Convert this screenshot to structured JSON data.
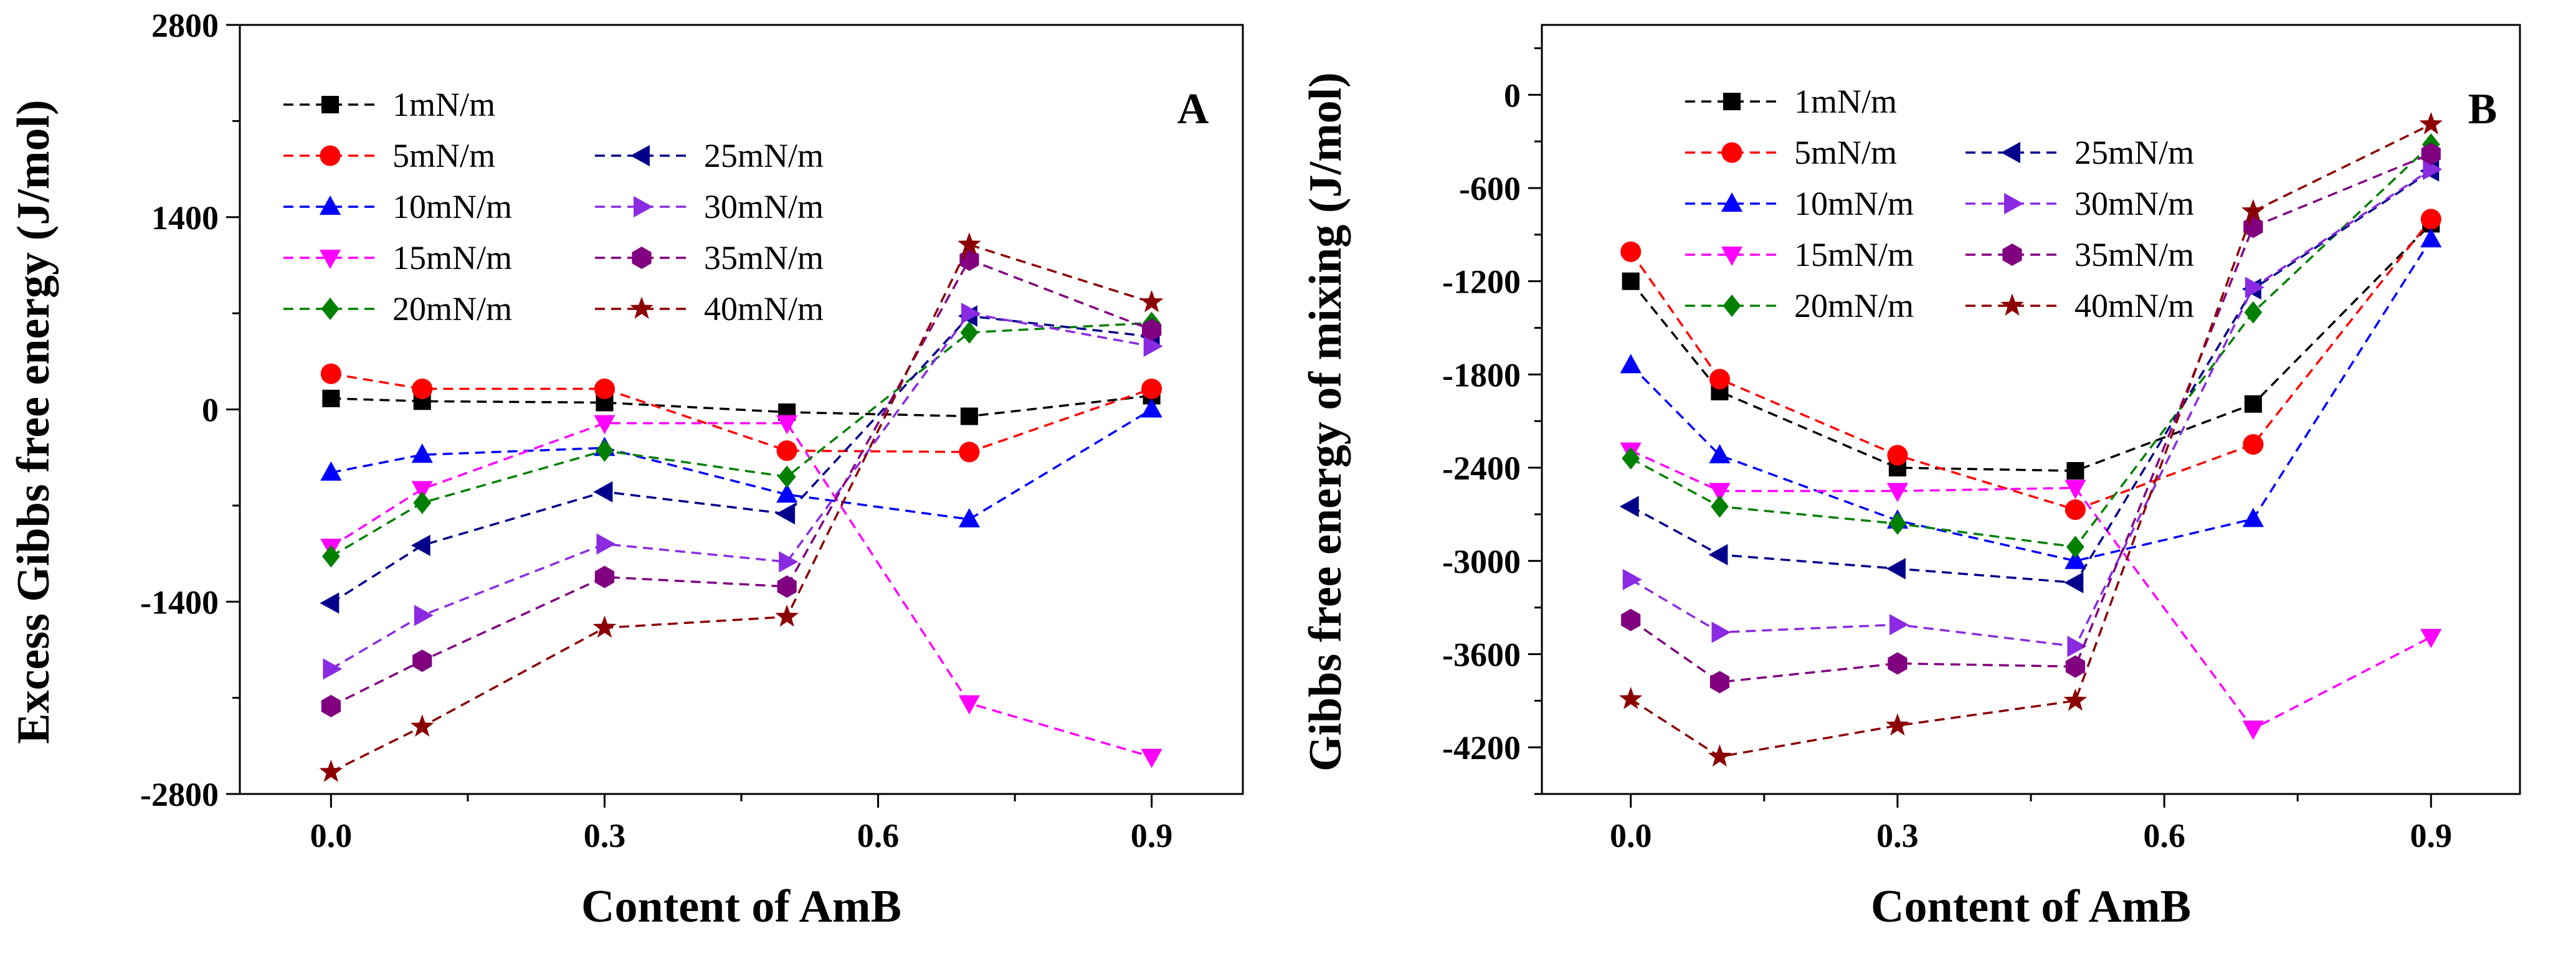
{
  "chart_data": [
    {
      "type": "line",
      "panel_label": "A",
      "xlabel": "Content of AmB",
      "ylabel": "Excess Gibbs free energy (J/mol)",
      "x": [
        0.0,
        0.1,
        0.3,
        0.5,
        0.7,
        0.9
      ],
      "xlim": [
        -0.1,
        1.0
      ],
      "ylim": [
        -2800,
        2800
      ],
      "xticks": [
        0.0,
        0.3,
        0.6,
        0.9
      ],
      "xtick_labels": [
        "0.0",
        "0.3",
        "0.6",
        "0.9"
      ],
      "yticks": [
        -2800,
        -1400,
        0,
        1400,
        2800
      ],
      "ytick_labels": [
        "-2800",
        "-1400",
        "0",
        "1400",
        "2800"
      ],
      "line_style": "dashed",
      "grid": false,
      "legend_position": "top-left",
      "series": [
        {
          "name": "1mN/m",
          "color": "#000000",
          "marker": "square",
          "values": [
            80,
            60,
            50,
            -20,
            -50,
            100
          ]
        },
        {
          "name": "5mN/m",
          "color": "#ff0000",
          "marker": "circle",
          "values": [
            260,
            150,
            150,
            -300,
            -310,
            150
          ]
        },
        {
          "name": "10mN/m",
          "color": "#0000ff",
          "marker": "triangle-up",
          "values": [
            -460,
            -330,
            -280,
            -620,
            -800,
            0
          ]
        },
        {
          "name": "15mN/m",
          "color": "#ff00ff",
          "marker": "triangle-down",
          "values": [
            -1000,
            -580,
            -100,
            -100,
            -2140,
            -2530
          ]
        },
        {
          "name": "20mN/m",
          "color": "#008000",
          "marker": "diamond",
          "values": [
            -1070,
            -680,
            -300,
            -490,
            560,
            630
          ]
        },
        {
          "name": "25mN/m",
          "color": "#00008b",
          "marker": "triangle-left",
          "values": [
            -1410,
            -990,
            -600,
            -760,
            680,
            530
          ]
        },
        {
          "name": "30mN/m",
          "color": "#8a2be2",
          "marker": "triangle-right",
          "values": [
            -1890,
            -1500,
            -980,
            -1110,
            700,
            460
          ]
        },
        {
          "name": "35mN/m",
          "color": "#800080",
          "marker": "hexagon",
          "values": [
            -2160,
            -1830,
            -1220,
            -1290,
            1090,
            580
          ]
        },
        {
          "name": "40mN/m",
          "color": "#8b0000",
          "marker": "star",
          "values": [
            -2640,
            -2310,
            -1590,
            -1510,
            1200,
            780
          ]
        }
      ]
    },
    {
      "type": "line",
      "panel_label": "B",
      "xlabel": "Content of AmB",
      "ylabel": "Gibbs free energy of mixing (J/mol)",
      "x": [
        0.0,
        0.1,
        0.3,
        0.5,
        0.7,
        0.9
      ],
      "xlim": [
        -0.1,
        1.0
      ],
      "ylim": [
        -4500,
        450
      ],
      "xticks": [
        0.0,
        0.3,
        0.6,
        0.9
      ],
      "xtick_labels": [
        "0.0",
        "0.3",
        "0.6",
        "0.9"
      ],
      "yticks": [
        -4200,
        -3600,
        -3000,
        -2400,
        -1800,
        -1200,
        -600,
        0
      ],
      "ytick_labels": [
        "-4200",
        "-3600",
        "-3000",
        "-2400",
        "-1800",
        "-1200",
        "-600",
        "0"
      ],
      "line_style": "dashed",
      "grid": false,
      "legend_position": "top-left",
      "series": [
        {
          "name": "1mN/m",
          "color": "#000000",
          "marker": "square",
          "values": [
            -1200,
            -1910,
            -2400,
            -2420,
            -1990,
            -830
          ]
        },
        {
          "name": "5mN/m",
          "color": "#ff0000",
          "marker": "circle",
          "values": [
            -1010,
            -1830,
            -2320,
            -2670,
            -2250,
            -800
          ]
        },
        {
          "name": "10mN/m",
          "color": "#0000ff",
          "marker": "triangle-up",
          "values": [
            -1740,
            -2320,
            -2740,
            -3000,
            -2730,
            -930
          ]
        },
        {
          "name": "15mN/m",
          "color": "#ff00ff",
          "marker": "triangle-down",
          "values": [
            -2290,
            -2550,
            -2550,
            -2530,
            -4080,
            -3490
          ]
        },
        {
          "name": "20mN/m",
          "color": "#008000",
          "marker": "diamond",
          "values": [
            -2340,
            -2650,
            -2760,
            -2910,
            -1400,
            -320
          ]
        },
        {
          "name": "25mN/m",
          "color": "#00008b",
          "marker": "triangle-left",
          "values": [
            -2650,
            -2960,
            -3050,
            -3140,
            -1250,
            -490
          ]
        },
        {
          "name": "30mN/m",
          "color": "#8a2be2",
          "marker": "triangle-right",
          "values": [
            -3120,
            -3460,
            -3410,
            -3550,
            -1240,
            -480
          ]
        },
        {
          "name": "35mN/m",
          "color": "#800080",
          "marker": "hexagon",
          "values": [
            -3380,
            -3780,
            -3660,
            -3680,
            -850,
            -380
          ]
        },
        {
          "name": "40mN/m",
          "color": "#8b0000",
          "marker": "star",
          "values": [
            -3890,
            -4260,
            -4060,
            -3900,
            -750,
            -190
          ]
        }
      ]
    }
  ]
}
